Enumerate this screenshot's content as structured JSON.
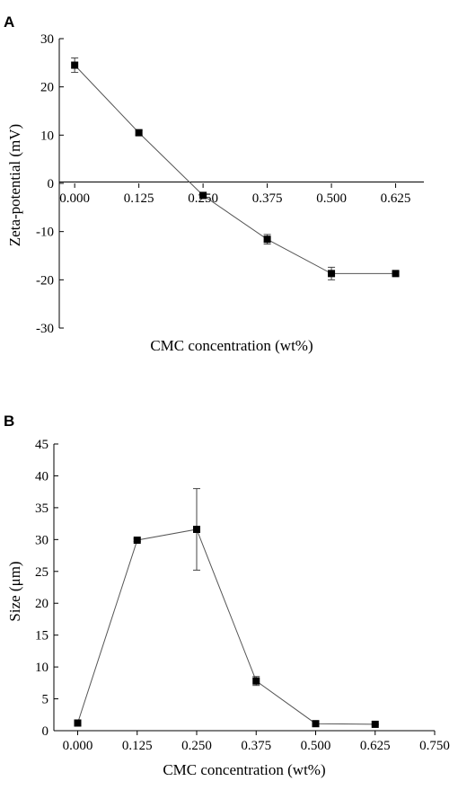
{
  "panels": [
    {
      "letter": "A"
    },
    {
      "letter": "B"
    }
  ],
  "chart_data": [
    {
      "type": "line",
      "panel": "A",
      "xlabel": "CMC concentration (wt%)",
      "ylabel": "Zeta-potential (mV)",
      "xlim": [
        -0.03,
        0.68
      ],
      "ylim": [
        -30,
        30
      ],
      "x_ticks": [
        0.0,
        0.125,
        0.25,
        0.375,
        0.5,
        0.625
      ],
      "x_tick_labels": [
        "0.000",
        "0.125",
        "0.250",
        "0.375",
        "0.500",
        "0.625"
      ],
      "y_ticks": [
        -30,
        -20,
        -10,
        0,
        10,
        20,
        30
      ],
      "y_tick_labels": [
        "-30",
        "-20",
        "-10",
        "0",
        "10",
        "20",
        "30"
      ],
      "x_axis_at_zero": true,
      "grid": false,
      "series": [
        {
          "x": [
            0.0,
            0.125,
            0.25,
            0.375,
            0.5,
            0.625
          ],
          "y": [
            24.5,
            10.5,
            -2.5,
            -11.6,
            -18.7,
            -18.7
          ],
          "error": [
            1.5,
            0.5,
            0.3,
            1.0,
            1.3,
            0.3
          ],
          "marker": "square",
          "color": "#000000",
          "line_color": "#555555"
        }
      ]
    },
    {
      "type": "line",
      "panel": "B",
      "xlabel": "CMC concentration (wt%)",
      "ylabel": "Size (μm)",
      "xlim": [
        -0.05,
        0.75
      ],
      "ylim": [
        0,
        45
      ],
      "x_ticks": [
        0.0,
        0.125,
        0.25,
        0.375,
        0.5,
        0.625,
        0.75
      ],
      "x_tick_labels": [
        "0.000",
        "0.125",
        "0.250",
        "0.375",
        "0.500",
        "0.625",
        "0.750"
      ],
      "y_ticks": [
        0,
        5,
        10,
        15,
        20,
        25,
        30,
        35,
        40,
        45
      ],
      "y_tick_labels": [
        "0",
        "5",
        "10",
        "15",
        "20",
        "25",
        "30",
        "35",
        "40",
        "45"
      ],
      "grid": false,
      "series": [
        {
          "x": [
            0.0,
            0.125,
            0.25,
            0.375,
            0.5,
            0.625
          ],
          "y": [
            1.2,
            29.9,
            31.6,
            7.8,
            1.1,
            1.0
          ],
          "error": [
            0.1,
            0.2,
            6.4,
            0.7,
            0.1,
            0.1
          ],
          "marker": "square",
          "color": "#000000",
          "line_color": "#555555"
        }
      ]
    }
  ]
}
